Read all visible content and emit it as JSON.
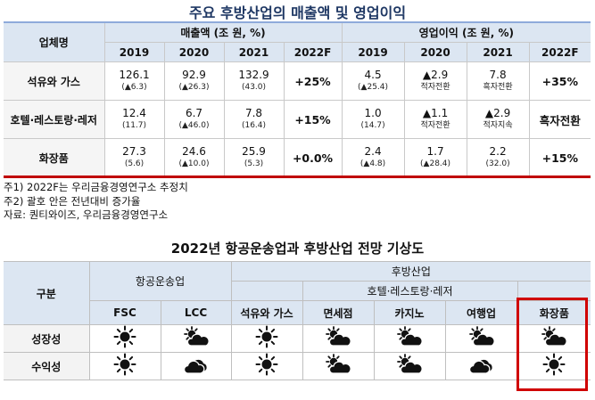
{
  "table1": {
    "title": "주요 후방산업의 매출액 및 영업이익",
    "company_header": "업체명",
    "sales_header": "매출액 (조 원, %)",
    "profit_header": "영업이익 (조 원, %)",
    "years": [
      "2019",
      "2020",
      "2021",
      "2022F"
    ],
    "rows": [
      {
        "name": "석유와 가스",
        "sales": [
          {
            "v": "126.1",
            "s": "(▲6.3)"
          },
          {
            "v": "92.9",
            "s": "(▲26.3)"
          },
          {
            "v": "132.9",
            "s": "(43.0)"
          }
        ],
        "sales_2022f": "+25%",
        "profit": [
          {
            "v": "4.5",
            "s": "(▲25.4)"
          },
          {
            "v": "▲2.9",
            "s": "적자전환"
          },
          {
            "v": "7.8",
            "s": "흑자전환"
          }
        ],
        "profit_2022f": "+35%"
      },
      {
        "name": "호텔·레스토랑·레저",
        "sales": [
          {
            "v": "12.4",
            "s": "(11.7)"
          },
          {
            "v": "6.7",
            "s": "(▲46.0)"
          },
          {
            "v": "7.8",
            "s": "(16.4)"
          }
        ],
        "sales_2022f": "+15%",
        "profit": [
          {
            "v": "1.0",
            "s": "(14.7)"
          },
          {
            "v": "▲1.1",
            "s": "적자전환"
          },
          {
            "v": "▲2.9",
            "s": "적자지속"
          }
        ],
        "profit_2022f": "흑자전환"
      },
      {
        "name": "화장품",
        "sales": [
          {
            "v": "27.3",
            "s": "(5.6)"
          },
          {
            "v": "24.6",
            "s": "(▲10.0)"
          },
          {
            "v": "25.9",
            "s": "(5.3)"
          }
        ],
        "sales_2022f": "+0.0%",
        "profit": [
          {
            "v": "2.4",
            "s": "(▲4.8)"
          },
          {
            "v": "1.7",
            "s": "(▲28.4)"
          },
          {
            "v": "2.2",
            "s": "(32.0)"
          }
        ],
        "profit_2022f": "+15%"
      }
    ]
  },
  "notes": [
    "주1) 2022F는 우리금융경영연구소 추정치",
    "주2) 괄호 안은 전년대비 증가율",
    "자료: 퀀티와이즈, 우리금융경영연구소"
  ],
  "table2": {
    "title": "2022년 항공운송업과 후방산업 전망 기상도",
    "category_header": "구분",
    "airline_header": "항공운송업",
    "downstream_header": "후방산업",
    "hotel_group_header": "호텔·레스토랑·레저",
    "columns": [
      "FSC",
      "LCC",
      "석유와 가스",
      "면세점",
      "카지노",
      "여행업",
      "화장품"
    ],
    "rows": [
      {
        "label": "성장성",
        "icons": [
          "sun-icon",
          "partly-cloudy-icon",
          "sun-icon",
          "partly-cloudy-icon",
          "partly-cloudy-icon",
          "partly-cloudy-icon",
          "partly-cloudy-icon"
        ]
      },
      {
        "label": "수익성",
        "icons": [
          "sun-icon",
          "cloudy-icon",
          "sun-icon",
          "partly-cloudy-icon",
          "partly-cloudy-icon",
          "cloudy-icon",
          "sun-icon"
        ]
      }
    ]
  },
  "colors": {
    "header_bg": "#dce6f2",
    "title": "#1f3864",
    "highlight": "#d00000"
  }
}
